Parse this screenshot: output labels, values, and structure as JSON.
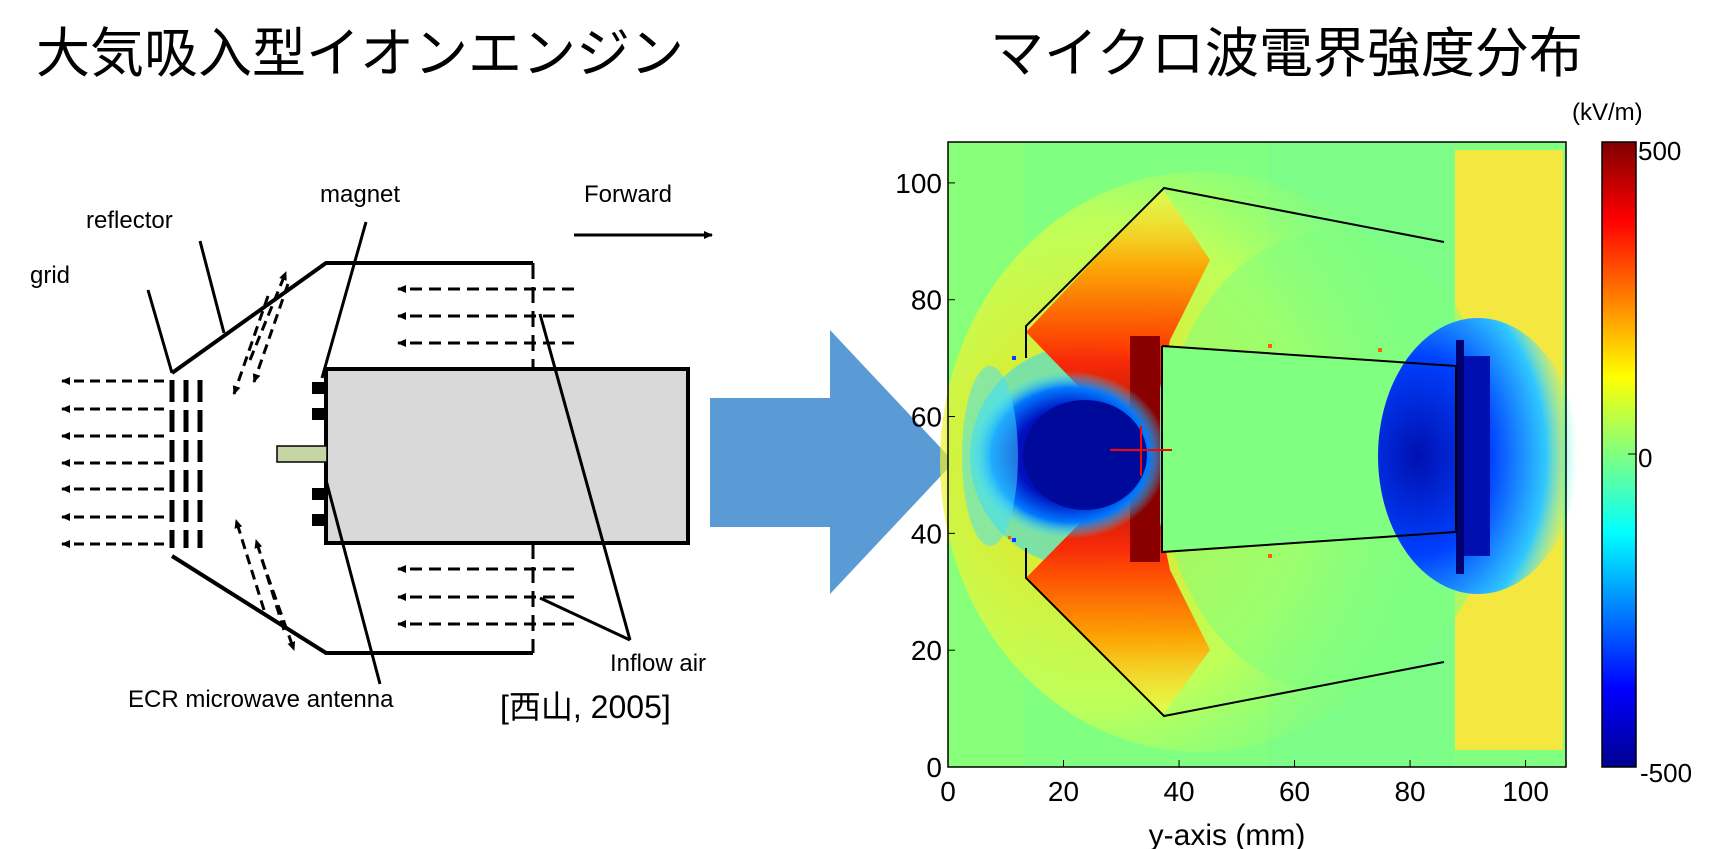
{
  "titles": {
    "left": "大気吸入型イオンエンジン",
    "right": "マイクロ波電界強度分布"
  },
  "engine_diagram": {
    "labels": {
      "grid": "grid",
      "reflector": "reflector",
      "magnet": "magnet",
      "forward": "Forward",
      "inflow_air": "Inflow air",
      "antenna": "ECR microwave antenna"
    },
    "citation": "[西山, 2005]"
  },
  "colors": {
    "arrow_fill": "#5b9bd5",
    "body_fill": "#d9d9d9",
    "antenna_fill": "#c5d6a4",
    "field_background": "#80ff80",
    "crosshair": "#ff0000"
  },
  "chart_data": {
    "type": "heatmap",
    "xlabel": "y-axis (mm)",
    "xlim": [
      0,
      107
    ],
    "ylim": [
      0,
      107
    ],
    "x_ticks": [
      0,
      20,
      40,
      60,
      80,
      100
    ],
    "y_ticks": [
      0,
      20,
      40,
      60,
      80,
      100
    ],
    "x_tick_labels": [
      "0",
      "20",
      "40",
      "60",
      "80",
      "100"
    ],
    "y_tick_labels": [
      "0",
      "20",
      "40",
      "60",
      "80",
      "100"
    ],
    "colorbar": {
      "unit": "(kV/m)",
      "min": -500,
      "max": 500,
      "tick_labels": [
        "500",
        "0",
        "-500"
      ],
      "colormap": "jet"
    }
  }
}
